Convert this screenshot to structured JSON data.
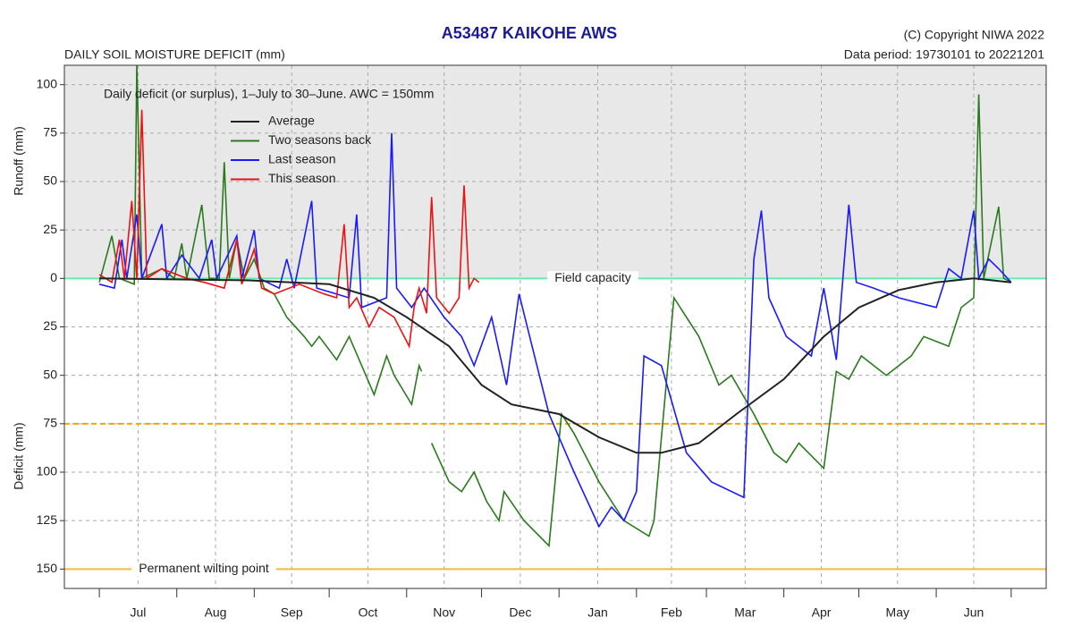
{
  "chart_data": {
    "type": "line",
    "title": "A53487  KAIKOHE AWS",
    "subtitle": "DAILY SOIL MOISTURE DEFICIT (mm)",
    "copyright": "(C) Copyright NIWA  2022",
    "data_period": "Data period:  19730101  to  20221201",
    "annotation": "Daily deficit (or surplus), 1–July to 30–June.  AWC = 150mm",
    "ylabel_top": "Runoff (mm)",
    "ylabel_bottom": "Deficit (mm)",
    "xlim": [
      -14,
      379
    ],
    "xticks": [
      0,
      31,
      62,
      92,
      123,
      153,
      184,
      215,
      243,
      274,
      304,
      335,
      365
    ],
    "month_labels": [
      "Jul",
      "Aug",
      "Sep",
      "Oct",
      "Nov",
      "Dec",
      "Jan",
      "Feb",
      "Mar",
      "Apr",
      "May",
      "Jun"
    ],
    "ylim": [
      -160,
      110
    ],
    "yticks": [
      100,
      75,
      50,
      25,
      0,
      {
        "value": -25,
        "label": "25"
      },
      {
        "value": -50,
        "label": "50"
      },
      {
        "value": -75,
        "label": "75"
      },
      {
        "value": -100,
        "label": "100"
      },
      {
        "value": -125,
        "label": "125"
      },
      {
        "value": -150,
        "label": "150"
      }
    ],
    "grid": true,
    "runoff_band_color": "#e8e8e8",
    "reference_lines": [
      {
        "value": 0,
        "label": "Field capacity",
        "color": "#6ee8b0"
      },
      {
        "value": -150,
        "label": "Permanent wilting point",
        "color": "#f5b942"
      },
      {
        "value": -75,
        "color": "#f0a800",
        "dashed": true
      }
    ],
    "series": [
      {
        "name": "Average",
        "color": "#222222",
        "x": [
          0,
          30,
          60,
          92,
          110,
          123,
          140,
          153,
          165,
          184,
          200,
          215,
          225,
          240,
          255,
          274,
          290,
          304,
          320,
          335,
          350,
          365
        ],
        "values": [
          0,
          -0.5,
          -1,
          -3,
          -10,
          -20,
          -35,
          -55,
          -65,
          -70,
          -82,
          -90,
          -90,
          -85,
          -70,
          -52,
          -30,
          -15,
          -6,
          -2,
          0,
          -2
        ]
      },
      {
        "name": "Two seasons back",
        "color": "#2a7a1e",
        "x": [
          0,
          5,
          8,
          14,
          15,
          17,
          25,
          30,
          33,
          35,
          41,
          44,
          48,
          50,
          52,
          55,
          58,
          62,
          66,
          70,
          75,
          82,
          85,
          88,
          95,
          100,
          105,
          110,
          115,
          118,
          125,
          128,
          129,
          131,
          133,
          140,
          145,
          150,
          155,
          160,
          162,
          170,
          180,
          185,
          190,
          200,
          210,
          220,
          222,
          230,
          240,
          248,
          253,
          262,
          270,
          275,
          280,
          290,
          295,
          300,
          305,
          315,
          325,
          330,
          340,
          345,
          350,
          352,
          354,
          360,
          362,
          365
        ],
        "values": [
          -2,
          22,
          0,
          -3,
          110,
          0,
          5,
          0,
          18,
          0,
          38,
          0,
          0,
          60,
          0,
          20,
          0,
          10,
          -5,
          -8,
          -20,
          -30,
          -35,
          -30,
          -42,
          -30,
          -45,
          -60,
          -40,
          -50,
          -65,
          -45,
          -48,
          null,
          -85,
          -105,
          -110,
          -100,
          -115,
          -125,
          -110,
          -125,
          -138,
          -70,
          -80,
          -105,
          -125,
          -133,
          -125,
          -10,
          -30,
          -55,
          -50,
          -70,
          -90,
          -95,
          -85,
          -98,
          -48,
          -52,
          -40,
          -50,
          -40,
          -30,
          -35,
          -15,
          -10,
          95,
          0,
          37,
          0,
          -2
        ]
      },
      {
        "name": "Last season",
        "color": "#1a1aff",
        "x": [
          0,
          6,
          9,
          11,
          15,
          17,
          25,
          27,
          33,
          40,
          45,
          47,
          55,
          57,
          62,
          64,
          72,
          75,
          78,
          85,
          87,
          100,
          103,
          105,
          115,
          117,
          119,
          125,
          130,
          138,
          145,
          150,
          157,
          163,
          168,
          180,
          190,
          200,
          205,
          210,
          215,
          218,
          225,
          235,
          245,
          258,
          262,
          265,
          268,
          275,
          285,
          290,
          295,
          300,
          303,
          310,
          320,
          335,
          340,
          345,
          350,
          352,
          356,
          360,
          365
        ],
        "values": [
          -3,
          -5,
          20,
          0,
          33,
          0,
          28,
          0,
          12,
          0,
          20,
          0,
          22,
          0,
          25,
          0,
          -5,
          10,
          -5,
          40,
          -5,
          -10,
          33,
          -15,
          -10,
          75,
          -5,
          -15,
          -5,
          -20,
          -30,
          -45,
          -20,
          -55,
          -8,
          -70,
          -100,
          -128,
          -118,
          -125,
          -110,
          -40,
          -45,
          -90,
          -105,
          -113,
          10,
          35,
          -10,
          -30,
          -40,
          -5,
          -42,
          38,
          -2,
          -5,
          -10,
          -15,
          5,
          0,
          35,
          0,
          10,
          5,
          -2
        ]
      },
      {
        "name": "This season",
        "color": "#ee1111",
        "x": [
          0,
          5,
          8,
          10,
          13,
          15,
          17,
          19,
          25,
          35,
          42,
          50,
          55,
          57,
          62,
          65,
          70,
          80,
          90,
          95,
          98,
          100,
          103,
          108,
          112,
          118,
          122,
          124,
          126,
          128,
          131,
          133,
          135,
          140,
          144,
          146,
          148,
          150,
          152
        ],
        "values": [
          2,
          -2,
          20,
          0,
          40,
          0,
          87,
          0,
          5,
          0,
          -2,
          -5,
          20,
          -3,
          15,
          -5,
          -8,
          -3,
          -8,
          -10,
          28,
          -15,
          -10,
          -25,
          -15,
          -20,
          -30,
          -35,
          -15,
          -5,
          -18,
          42,
          -10,
          -18,
          -10,
          48,
          -5,
          0,
          -2
        ]
      }
    ]
  }
}
